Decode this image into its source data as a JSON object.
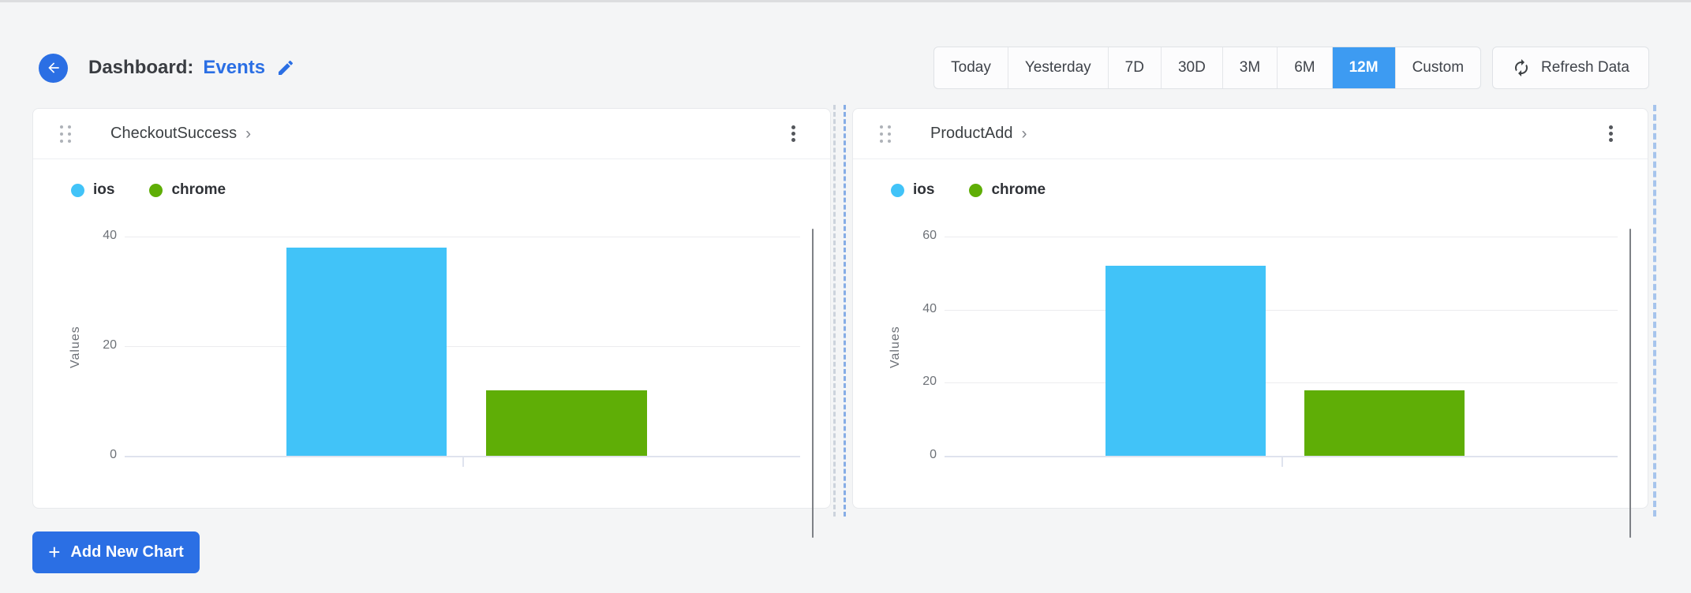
{
  "header": {
    "title_prefix": "Dashboard:",
    "dashboard_name": "Events"
  },
  "time_range": {
    "options": [
      "Today",
      "Yesterday",
      "7D",
      "30D",
      "3M",
      "6M",
      "12M",
      "Custom"
    ],
    "selected": "12M"
  },
  "refresh": {
    "label": "Refresh Data"
  },
  "add_chart": {
    "label": "Add New Chart"
  },
  "icons": {
    "plus": "+",
    "chevron_right": "›",
    "back_arrow": "arrow-left",
    "edit": "pencil",
    "refresh": "circular-arrows",
    "drag_handle": "six-dots",
    "kebab": "three-dots-vertical"
  },
  "colors": {
    "primary_blue": "#2b6fe4",
    "selected_range_blue": "#3d9bf2",
    "bar_ios_blue": "#41c3f8",
    "bar_chrome_green": "#5fae06"
  },
  "charts": [
    {
      "title": "CheckoutSuccess",
      "chart_data": {
        "type": "bar",
        "title": "CheckoutSuccess",
        "xlabel": "",
        "ylabel": "Values",
        "yticks": [
          0,
          20,
          40
        ],
        "ymax": 40,
        "grid": true,
        "legend_position": "top-left",
        "categories": [
          "ios",
          "chrome"
        ],
        "series": [
          {
            "name": "ios",
            "value": 38,
            "color": "#41c3f8"
          },
          {
            "name": "chrome",
            "value": 12,
            "color": "#5fae06"
          }
        ]
      }
    },
    {
      "title": "ProductAdd",
      "chart_data": {
        "type": "bar",
        "title": "ProductAdd",
        "xlabel": "",
        "ylabel": "Values",
        "yticks": [
          0,
          20,
          40,
          60
        ],
        "ymax": 60,
        "grid": true,
        "legend_position": "top-left",
        "categories": [
          "ios",
          "chrome"
        ],
        "series": [
          {
            "name": "ios",
            "value": 52,
            "color": "#41c3f8"
          },
          {
            "name": "chrome",
            "value": 18,
            "color": "#5fae06"
          }
        ]
      }
    }
  ]
}
